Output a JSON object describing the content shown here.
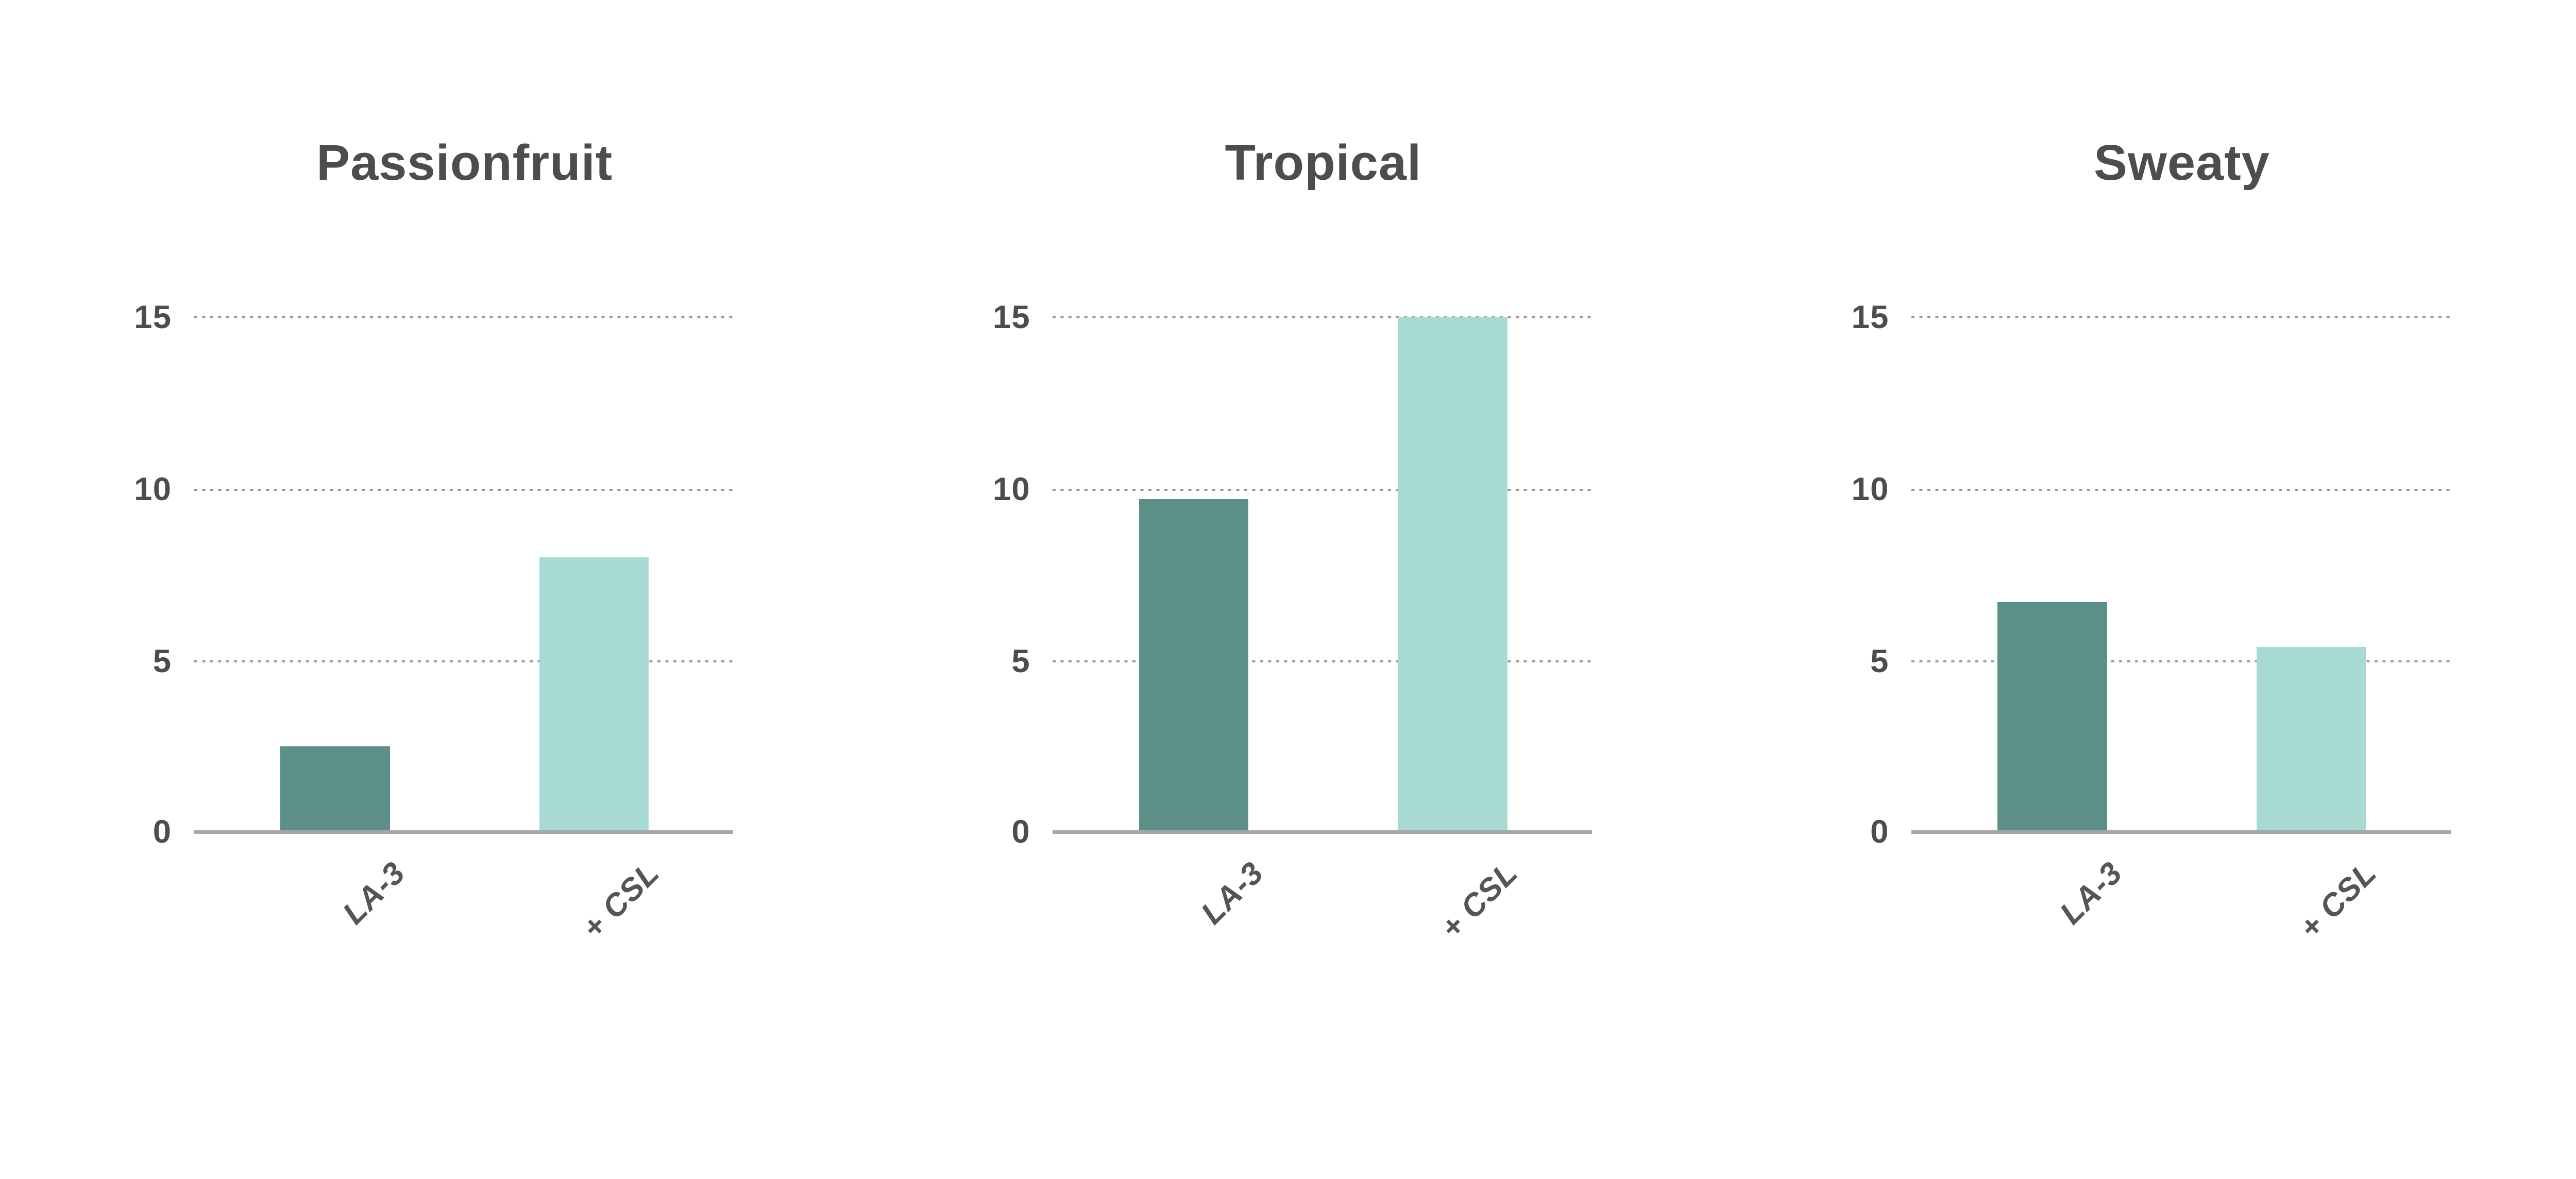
{
  "chart_data": [
    {
      "type": "bar",
      "title": "Passionfruit",
      "categories": [
        "LA-3",
        "+ CSL"
      ],
      "values": [
        2.5,
        8.0
      ],
      "ylim": [
        0,
        15
      ],
      "yticks": [
        0,
        5,
        10,
        15
      ],
      "bar_colors": [
        "#5B8F88",
        "#A7DAD2"
      ],
      "grid": "horizontal-dotted",
      "legend": "none",
      "xlabel": "",
      "ylabel": ""
    },
    {
      "type": "bar",
      "title": "Tropical",
      "categories": [
        "LA-3",
        "+ CSL"
      ],
      "values": [
        9.7,
        15.0
      ],
      "ylim": [
        0,
        15
      ],
      "yticks": [
        0,
        5,
        10,
        15
      ],
      "bar_colors": [
        "#5B8F88",
        "#A7DAD2"
      ],
      "grid": "horizontal-dotted",
      "legend": "none",
      "xlabel": "",
      "ylabel": ""
    },
    {
      "type": "bar",
      "title": "Sweaty",
      "categories": [
        "LA-3",
        "+ CSL"
      ],
      "values": [
        6.7,
        5.4
      ],
      "ylim": [
        0,
        15
      ],
      "yticks": [
        0,
        5,
        10,
        15
      ],
      "bar_colors": [
        "#5B8F88",
        "#A7DAD2"
      ],
      "grid": "horizontal-dotted",
      "legend": "none",
      "xlabel": "",
      "ylabel": ""
    }
  ],
  "style": {
    "background": "#ffffff",
    "bar_color_primary": "#5B8F88",
    "bar_color_secondary": "#A7DAD2",
    "grid_color": "#999999",
    "axis_color": "#A6A6A6",
    "title_color": "#4D4D4D",
    "tick_color": "#4D4D4D",
    "category_label_color": "#555555"
  }
}
